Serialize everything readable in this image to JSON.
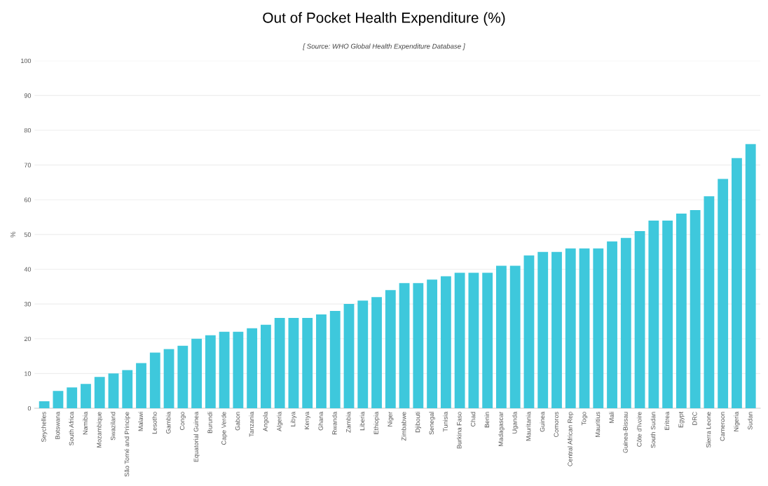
{
  "chart_data": {
    "type": "bar",
    "title": "Out of Pocket Health Expenditure (%)",
    "subtitle": "[ Source: WHO Global Health Expenditure Database ]",
    "ylabel": "%",
    "categories": [
      "Seychelles",
      "Botswana",
      "South Africa",
      "Namibia",
      "Mozambique",
      "Swaziland",
      "São Tomé and Principe",
      "Malawi",
      "Lesotho",
      "Gambia",
      "Congo",
      "Equatorial Guinea",
      "Burundi",
      "Cape Verde",
      "Gabon",
      "Tanzania",
      "Angola",
      "Algeria",
      "Libya",
      "Kenya",
      "Ghana",
      "Rwanda",
      "Zambia",
      "Liberia",
      "Ethiopia",
      "Niger",
      "Zimbabwe",
      "Djibouti",
      "Senegal",
      "Tunisia",
      "Burkina Faso",
      "Chad",
      "Benin",
      "Madagascar",
      "Uganda",
      "Mauritania",
      "Guinea",
      "Comoros",
      "Central African Rep",
      "Togo",
      "Mauritius",
      "Mali",
      "Guinea-Bissau",
      "Côte d'Ivoire",
      "South Sudan",
      "Eritrea",
      "Egypt",
      "DRC",
      "Sierra Leone",
      "Cameroon",
      "Nigeria",
      "Sudan"
    ],
    "values": [
      2,
      5,
      6,
      7,
      9,
      10,
      11,
      13,
      16,
      17,
      18,
      20,
      21,
      22,
      22,
      23,
      24,
      26,
      26,
      26,
      27,
      28,
      30,
      31,
      32,
      34,
      36,
      36,
      37,
      38,
      39,
      39,
      39,
      41,
      41,
      44,
      45,
      45,
      46,
      46,
      46,
      48,
      49,
      51,
      54,
      54,
      56,
      57,
      61,
      66,
      72,
      76
    ],
    "color": "#3ec8dc",
    "ylim": [
      0,
      100
    ],
    "yticks": [
      0,
      10,
      20,
      30,
      40,
      50,
      60,
      70,
      80,
      90,
      100
    ],
    "grid": "y"
  }
}
